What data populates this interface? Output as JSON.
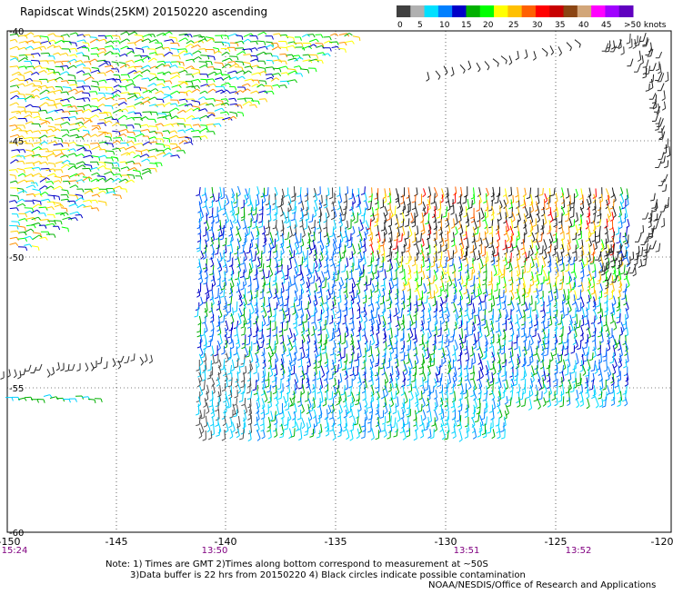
{
  "title": "Rapidscat Winds(25KM) 20150220 ascending",
  "legend": {
    "labels": [
      "0",
      "5",
      "10",
      "15",
      "20",
      "25",
      "30",
      "35",
      "40",
      "45",
      ">50 knots"
    ],
    "colors": [
      "#404040",
      "#b0b0b0",
      "#00e0ff",
      "#0080ff",
      "#0000c8",
      "#00b000",
      "#00ff00",
      "#ffff00",
      "#ffc000",
      "#ff6000",
      "#ff0000",
      "#c80000",
      "#8b4513",
      "#d2a679",
      "#ff00ff",
      "#a000ff",
      "#6000c0"
    ]
  },
  "axes": {
    "lon_labels": [
      "-150",
      "-145",
      "-140",
      "-135",
      "-130",
      "-125",
      "-120"
    ],
    "lat_labels": [
      "-40",
      "-45",
      "-50",
      "-55",
      "-60"
    ]
  },
  "times": [
    {
      "label": "15:24"
    },
    {
      "label": "13:50"
    },
    {
      "label": "13:51"
    },
    {
      "label": "13:52"
    }
  ],
  "notes": {
    "line1": "Note: 1) Times are GMT 2)Times along bottom correspond to measurement at ~50S",
    "line2": "3)Data buffer is 22 hrs from 20150220 4) Black circles indicate possible contamination"
  },
  "credit": "NOAA/NESDIS/Office of Research and Applications",
  "swaths": [
    {
      "name": "northwest-swath",
      "colors": [
        "#00b000",
        "#00c800",
        "#ffd000",
        "#ffff00",
        "#00e0ff",
        "#0000c8",
        "#ff9000",
        "#00ff00"
      ]
    },
    {
      "name": "central-swath",
      "colors": [
        "#0060ff",
        "#0000c8",
        "#00d0ff",
        "#00b000",
        "#00e0ff",
        "#202020",
        "#ff6000",
        "#ff0000",
        "#ffc000",
        "#ffff00",
        "#00ff00"
      ]
    },
    {
      "name": "east-swath",
      "colors": [
        "#202020",
        "#303030"
      ]
    },
    {
      "name": "southwest-strip",
      "colors": [
        "#202020",
        "#00b000",
        "#00d0ff"
      ]
    }
  ]
}
